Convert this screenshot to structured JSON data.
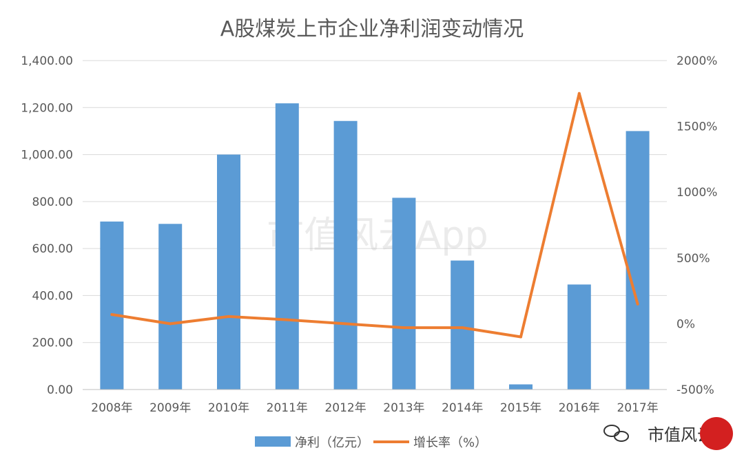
{
  "chart_data": {
    "type": "bar+line",
    "title": "A股煤炭上市企业净利润变动情况",
    "categories": [
      "2008年",
      "2009年",
      "2010年",
      "2011年",
      "2012年",
      "2013年",
      "2014年",
      "2015年",
      "2016年",
      "2017年"
    ],
    "series": [
      {
        "name": "净利（亿元）",
        "type": "bar",
        "axis": "left",
        "color": "#5b9bd5",
        "values": [
          715,
          705,
          1000,
          1218,
          1143,
          816,
          549,
          22,
          447,
          1100
        ]
      },
      {
        "name": "增长率（%）",
        "type": "line",
        "axis": "right",
        "color": "#ed7d31",
        "values": [
          70,
          0,
          55,
          30,
          0,
          -30,
          -30,
          -100,
          1750,
          150
        ]
      }
    ],
    "y_left": {
      "min": 0,
      "max": 1400,
      "ticks": [
        "0.00",
        "200.00",
        "400.00",
        "600.00",
        "800.00",
        "1,000.00",
        "1,200.00",
        "1,400.00"
      ]
    },
    "y_right": {
      "min": -500,
      "max": 2000,
      "ticks": [
        "-500%",
        "0%",
        "500%",
        "1000%",
        "1500%",
        "2000%"
      ]
    },
    "grid": true,
    "legend_position": "bottom"
  },
  "watermark": "市值风云App",
  "brand": {
    "name": "市值风云"
  }
}
